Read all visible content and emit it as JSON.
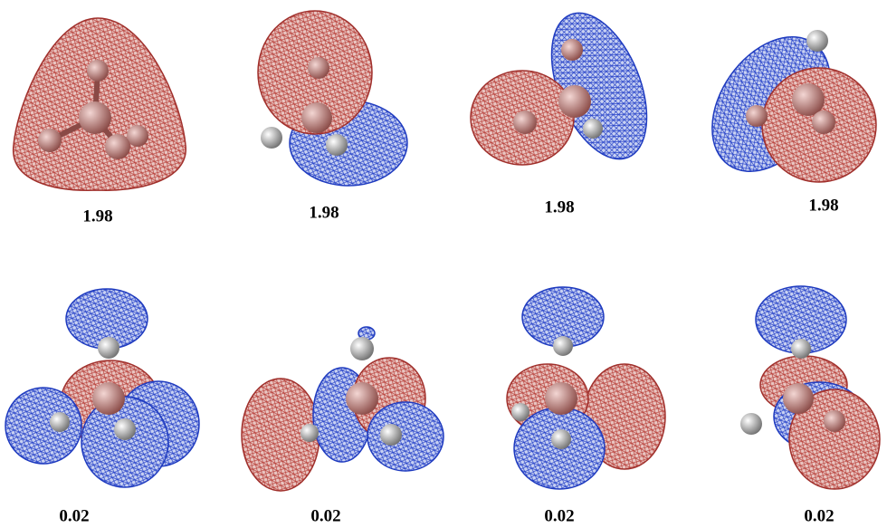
{
  "panels": [
    {
      "label": "1.98"
    },
    {
      "label": "1.98"
    },
    {
      "label": "1.98"
    },
    {
      "label": "1.98"
    },
    {
      "label": "0.02"
    },
    {
      "label": "0.02"
    },
    {
      "label": "0.02"
    },
    {
      "label": "0.02"
    }
  ]
}
